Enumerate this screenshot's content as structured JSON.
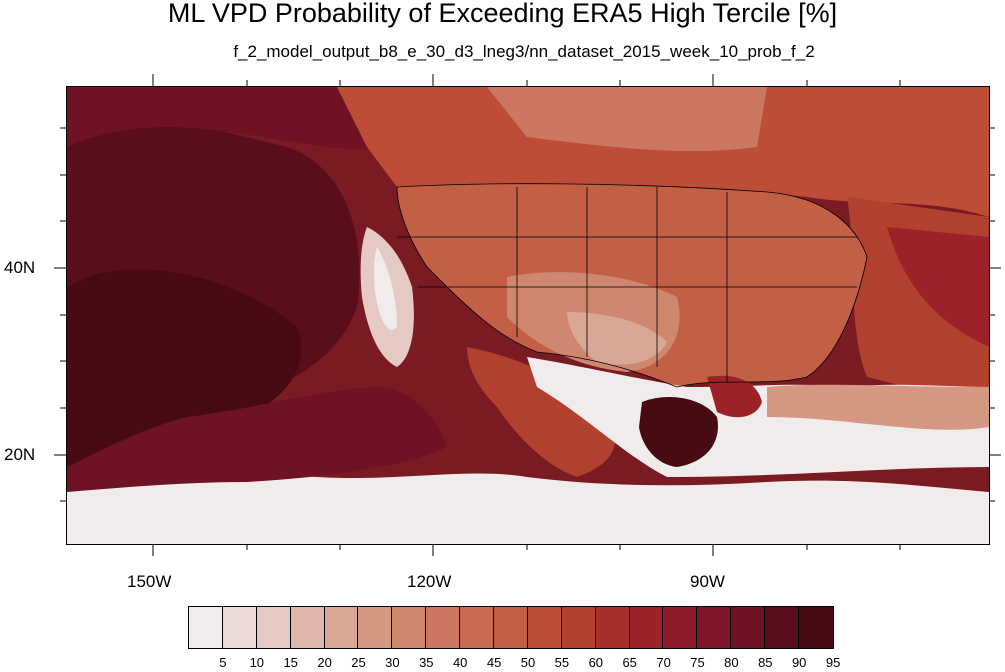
{
  "header": {
    "title": "ML VPD Probability of Exceeding ERA5 High Tercile [%]",
    "subtitle": "f_2_model_output_b8_e_30_d3_lneg3/nn_dataset_2015_week_10_prob_f_2"
  },
  "map": {
    "lat_labels": [
      "40N",
      "20N"
    ],
    "lon_labels": [
      "150W",
      "120W",
      "90W"
    ]
  },
  "colorbar": {
    "labels": [
      "5",
      "10",
      "15",
      "20",
      "25",
      "30",
      "35",
      "40",
      "45",
      "50",
      "55",
      "60",
      "65",
      "70",
      "75",
      "80",
      "85",
      "90",
      "95"
    ],
    "colors": [
      "#f0ecec",
      "#ebdbd8",
      "#e4cac3",
      "#deb7aa",
      "#d9a795",
      "#d59882",
      "#d08770",
      "#cb7761",
      "#c86b53",
      "#c35f45",
      "#bd4d36",
      "#b2402e",
      "#a8302a",
      "#9b2228",
      "#8f1a2c",
      "#7e1428",
      "#6f1223",
      "#5a0e1c",
      "#470a13"
    ]
  }
}
